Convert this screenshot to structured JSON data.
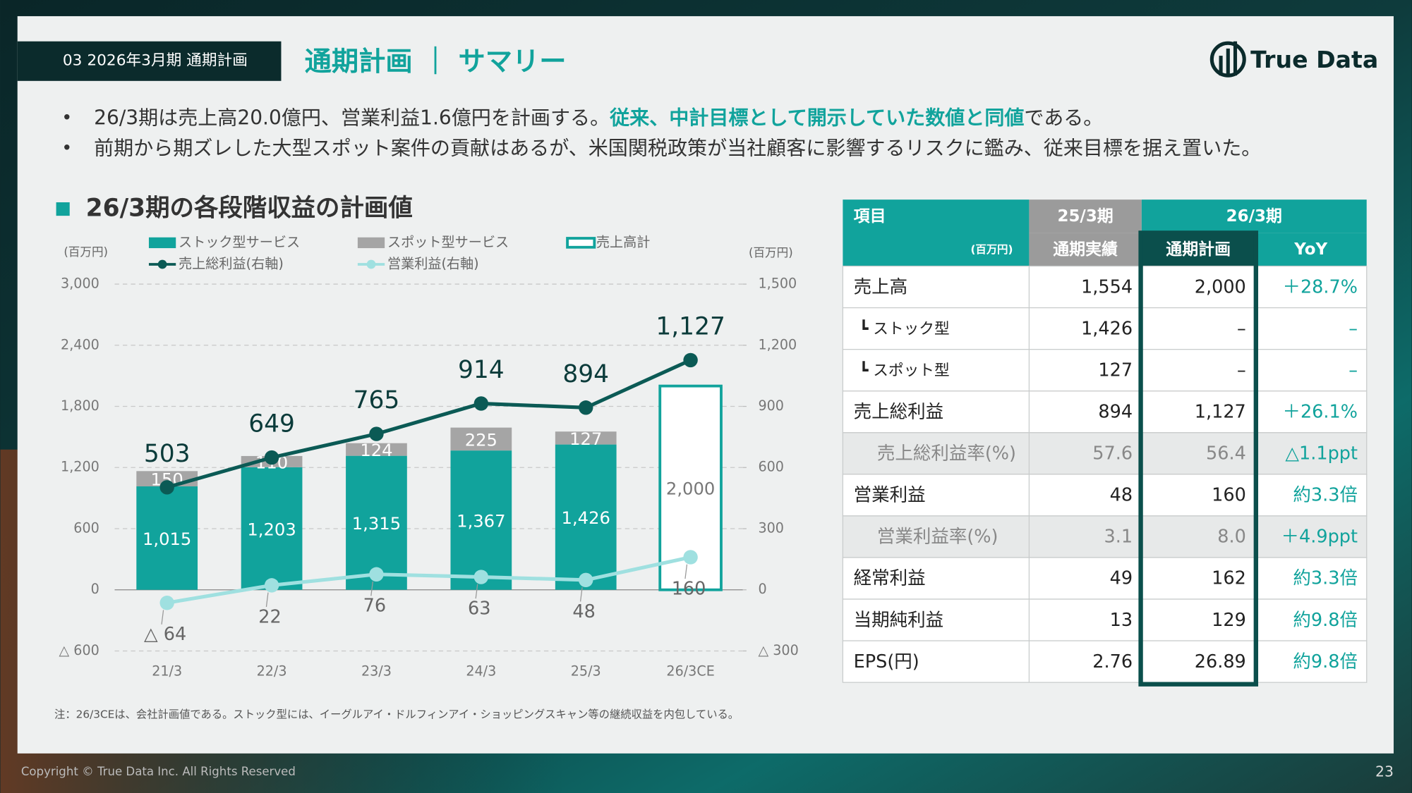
{
  "header": {
    "section": "03 2026年3月期 通期計画",
    "title": "通期計画 ｜ サマリー",
    "logo": "True Data"
  },
  "bullets": [
    [
      "26/3期は売上高20.0億円、営業利益1.6億円を計画する。",
      "従来、中計目標として開示していた数値と同値",
      "である。"
    ],
    [
      "前期から期ズレした大型スポット案件の貢献はあるが、米国関税政策が当社顧客に影響するリスクに鑑み、従来目標を据え置いた。"
    ]
  ],
  "chart_data": {
    "type": "combo",
    "title": "26/3期の各段階収益の計画値",
    "ylabel": "(百万円)",
    "y2label": "(百万円)",
    "categories": [
      "21/3",
      "22/3",
      "23/3",
      "24/3",
      "25/3",
      "26/3CE"
    ],
    "ylim": [
      -600,
      3000
    ],
    "yticks": [
      {
        "value": -600,
        "label": "△ 600"
      },
      0,
      600,
      {
        "value": 1200,
        "label": "1,200"
      },
      {
        "value": 1800,
        "label": "1,800"
      },
      {
        "value": 2400,
        "label": "2,400"
      },
      {
        "value": 3000,
        "label": "3,000"
      }
    ],
    "y2lim": [
      -300,
      1500
    ],
    "y2ticks": [
      {
        "value": -300,
        "label": "△ 300"
      },
      0,
      300,
      600,
      900,
      {
        "value": 1200,
        "label": "1,200"
      },
      {
        "value": 1500,
        "label": "1,500"
      }
    ],
    "grid": true,
    "series": [
      {
        "name": "ストック型サービス",
        "type": "bar",
        "color": "#11a39c",
        "values": [
          1015,
          1203,
          1315,
          1367,
          1426,
          null
        ],
        "value_labels": [
          "1,015",
          "1,203",
          "1,315",
          "1,367",
          "1,426",
          null
        ]
      },
      {
        "name": "スポット型サービス",
        "type": "bar",
        "color": "#a5a5a5",
        "values": [
          150,
          110,
          124,
          225,
          127,
          null
        ]
      },
      {
        "name": "売上高計",
        "type": "outline",
        "color": "#11a39c",
        "values": [
          null,
          null,
          null,
          null,
          null,
          2000
        ],
        "value_labels": [
          null,
          null,
          null,
          null,
          null,
          "2,000"
        ]
      },
      {
        "name": "売上総利益(右軸)",
        "type": "line",
        "axis": "y2",
        "color": "#0b5a55",
        "values": [
          503,
          649,
          765,
          914,
          894,
          1127
        ],
        "value_labels": [
          "503",
          "649",
          "765",
          "914",
          "894",
          "1,127"
        ]
      },
      {
        "name": "営業利益(右軸)",
        "type": "line",
        "axis": "y2",
        "color": "#9fe0e0",
        "values": [
          -64,
          22,
          76,
          63,
          48,
          160
        ],
        "value_labels": [
          "△ 64",
          "22",
          "76",
          "63",
          "48",
          "160"
        ]
      }
    ]
  },
  "table": {
    "header": [
      [
        "項目",
        "25/3期",
        "26/3期"
      ],
      [
        "(百万円)",
        "通期実績",
        "通期計画",
        "YoY"
      ]
    ],
    "rows": [
      [
        "売上高",
        "1,554",
        "2,000",
        "＋28.7%"
      ],
      [
        "┗ ストック型",
        "1,426",
        "–",
        "–"
      ],
      [
        "┗ スポット型",
        "127",
        "–",
        "–"
      ],
      [
        "売上総利益",
        "894",
        "1,127",
        "＋26.1%"
      ],
      [
        "売上総利益率(%)",
        "57.6",
        "56.4",
        "△1.1ppt"
      ],
      [
        "営業利益",
        "48",
        "160",
        "約3.3倍"
      ],
      [
        "営業利益率(%)",
        "3.1",
        "8.0",
        "＋4.9ppt"
      ],
      [
        "経常利益",
        "49",
        "162",
        "約3.3倍"
      ],
      [
        "当期純利益",
        "13",
        "129",
        "約9.8倍"
      ],
      [
        "EPS(円)",
        "2.76",
        "26.89",
        "約9.8倍"
      ]
    ]
  },
  "note": "注：26/3CEは、会社計画値である。ストック型には、イーグルアイ・ドルフィンアイ・ショッピングスキャン等の継続収益を内包している。",
  "footer": {
    "copyright": "Copyright © True Data Inc. All Rights Reserved",
    "page": "23"
  }
}
